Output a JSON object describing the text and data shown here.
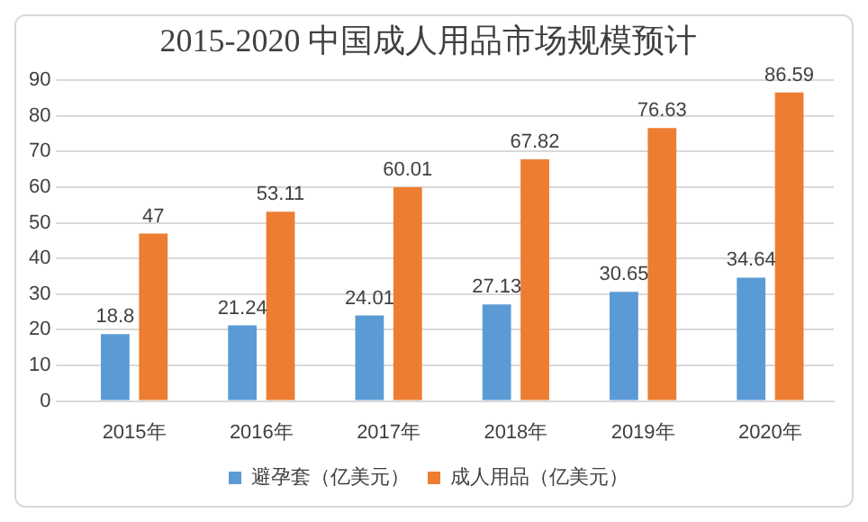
{
  "chart_data": {
    "type": "bar",
    "title": "2015-2020 中国成人用品市场规模预计",
    "categories": [
      "2015年",
      "2016年",
      "2017年",
      "2018年",
      "2019年",
      "2020年"
    ],
    "series": [
      {
        "name": "避孕套（亿美元）",
        "color": "#5b9bd5",
        "values": [
          18.8,
          21.24,
          24.01,
          27.13,
          30.65,
          34.64
        ]
      },
      {
        "name": "成人用品（亿美元）",
        "color": "#ed7d31",
        "values": [
          47,
          53.11,
          60.01,
          67.82,
          76.63,
          86.59
        ]
      }
    ],
    "ylim": [
      0,
      90
    ],
    "yticks": [
      0,
      10,
      20,
      30,
      40,
      50,
      60,
      70,
      80,
      90
    ],
    "grid": "y",
    "legend": "bottom",
    "data_labels": true
  }
}
